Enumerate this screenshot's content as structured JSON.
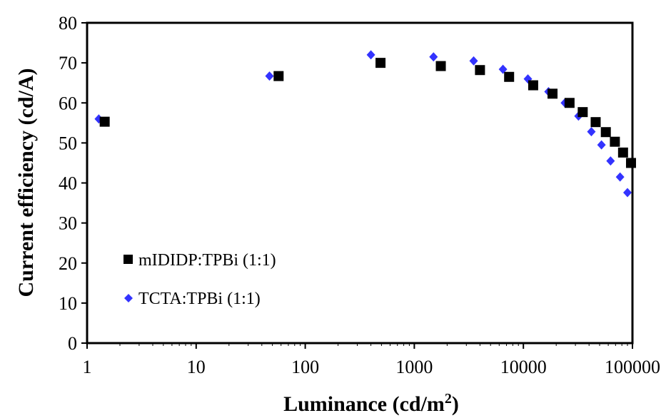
{
  "chart_data": {
    "type": "scatter",
    "xscale": "log",
    "xlim": [
      1,
      100000
    ],
    "ylim": [
      0,
      80
    ],
    "grid": false,
    "legend_placement": "bottom-left",
    "xlabel_main": "Luminance (cd/m",
    "xlabel_sup": "2",
    "xlabel_end": ")",
    "ylabel": "Current  efficiency (cd/A)",
    "x_ticks": [
      1,
      10,
      100,
      1000,
      10000,
      100000
    ],
    "x_tick_labels": [
      "1",
      "10",
      "100",
      "1000",
      "10000",
      "100000"
    ],
    "y_ticks": [
      0,
      10,
      20,
      30,
      40,
      50,
      60,
      70,
      80
    ],
    "y_tick_labels": [
      "0",
      "10",
      "20",
      "30",
      "40",
      "50",
      "60",
      "70",
      "80"
    ],
    "series": [
      {
        "name": "mIDIDP:TPBi (1:1)",
        "marker": "square",
        "color": "#000000",
        "points": [
          [
            1.45,
            55.3
          ],
          [
            57,
            66.7
          ],
          [
            490,
            70.0
          ],
          [
            1750,
            69.2
          ],
          [
            4000,
            68.2
          ],
          [
            7400,
            66.5
          ],
          [
            12300,
            64.4
          ],
          [
            18500,
            62.3
          ],
          [
            26500,
            60.0
          ],
          [
            35000,
            57.7
          ],
          [
            46000,
            55.2
          ],
          [
            57000,
            52.7
          ],
          [
            69000,
            50.3
          ],
          [
            82000,
            47.6
          ],
          [
            97000,
            45.0
          ]
        ]
      },
      {
        "name": "TCTA:TPBi (1:1)",
        "marker": "diamond",
        "color": "#3333ff",
        "points": [
          [
            1.28,
            56.0
          ],
          [
            47,
            66.7
          ],
          [
            400,
            72.0
          ],
          [
            1500,
            71.5
          ],
          [
            3500,
            70.5
          ],
          [
            6500,
            68.4
          ],
          [
            11000,
            66.0
          ],
          [
            17000,
            62.8
          ],
          [
            24000,
            60.0
          ],
          [
            32000,
            56.7
          ],
          [
            42000,
            52.8
          ],
          [
            52000,
            49.5
          ],
          [
            63000,
            45.5
          ],
          [
            77000,
            41.5
          ],
          [
            90000,
            37.6
          ]
        ]
      }
    ]
  }
}
